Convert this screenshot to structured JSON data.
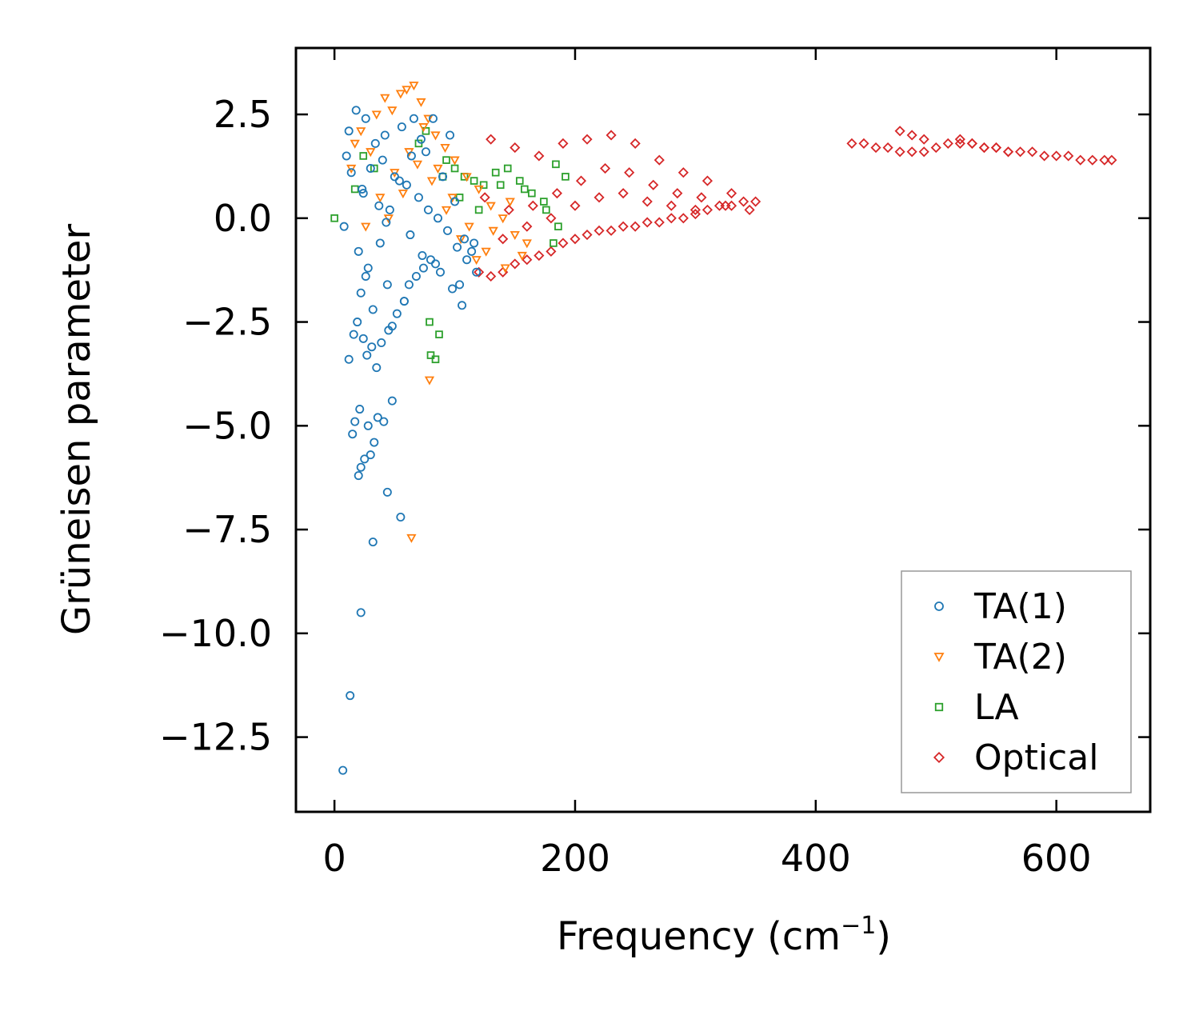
{
  "chart_data": {
    "type": "scatter",
    "title": "",
    "xlabel": "Frequency (cm",
    "xlabel_sup": "−1",
    "xlabel_end": ")",
    "ylabel": "Grüneisen parameter",
    "xlim": [
      -32,
      678
    ],
    "ylim": [
      -14.3,
      4.1
    ],
    "xticks": [
      0,
      200,
      400,
      600
    ],
    "xtick_labels": [
      "0",
      "200",
      "400",
      "600"
    ],
    "yticks": [
      2.5,
      0.0,
      -2.5,
      -5.0,
      -7.5,
      -10.0,
      -12.5
    ],
    "ytick_labels": [
      "2.5",
      "0.0",
      "−2.5",
      "−5.0",
      "−7.5",
      "−10.0",
      "−12.5"
    ],
    "grid": false,
    "legend_position": "lower-right",
    "series": [
      {
        "name": "TA(1)",
        "marker": "circle",
        "color": "#1f77b4",
        "x": [
          7,
          13,
          22,
          32,
          55,
          44,
          20,
          22,
          25,
          30,
          33,
          15,
          17,
          21,
          28,
          36,
          48,
          41,
          12,
          16,
          19,
          24,
          27,
          31,
          35,
          39,
          45,
          52,
          58,
          62,
          68,
          74,
          80,
          12,
          18,
          26,
          34,
          40,
          50,
          60,
          70,
          78,
          86,
          94,
          102,
          110,
          118,
          8,
          24,
          30,
          42,
          56,
          66,
          76,
          90,
          100,
          108,
          22,
          28,
          38,
          46,
          54,
          64,
          72,
          82,
          96,
          114,
          20,
          26,
          32,
          44,
          48,
          58,
          84,
          104,
          116,
          10,
          14,
          23,
          37,
          43,
          63,
          73,
          88,
          98,
          106
        ],
        "y": [
          -13.3,
          -11.5,
          -9.5,
          -7.8,
          -7.2,
          -6.6,
          -6.2,
          -6.0,
          -5.8,
          -5.7,
          -5.4,
          -5.2,
          -4.9,
          -4.6,
          -5.0,
          -4.8,
          -4.4,
          -4.9,
          -3.4,
          -2.8,
          -2.5,
          -2.9,
          -3.3,
          -3.1,
          -3.6,
          -3.0,
          -2.7,
          -2.3,
          -2.0,
          -1.6,
          -1.4,
          -1.2,
          -1.0,
          2.1,
          2.6,
          2.4,
          1.8,
          1.4,
          1.0,
          0.8,
          0.5,
          0.2,
          0.0,
          -0.3,
          -0.7,
          -1.0,
          -1.3,
          -0.2,
          0.6,
          1.2,
          2.0,
          2.2,
          2.4,
          1.6,
          1.0,
          0.4,
          -0.5,
          -1.8,
          -1.2,
          -0.6,
          0.2,
          0.9,
          1.5,
          1.9,
          2.4,
          2.0,
          -0.8,
          -0.8,
          -1.4,
          -2.2,
          -1.6,
          -2.6,
          -2.0,
          -1.1,
          -1.6,
          -0.6,
          1.5,
          1.1,
          0.7,
          0.3,
          -0.1,
          -0.4,
          -0.9,
          -1.3,
          -1.7,
          -2.1
        ]
      },
      {
        "name": "TA(2)",
        "marker": "triangle-down",
        "color": "#ff7f0e",
        "x": [
          64,
          79,
          14,
          17,
          22,
          30,
          35,
          42,
          48,
          55,
          60,
          66,
          72,
          78,
          84,
          92,
          100,
          110,
          120,
          130,
          140,
          150,
          160,
          26,
          38,
          50,
          62,
          74,
          86,
          98,
          112,
          126,
          142,
          156,
          45,
          57,
          69,
          81,
          93,
          105,
          118,
          132,
          146
        ],
        "y": [
          -7.7,
          -3.9,
          1.2,
          1.8,
          2.1,
          1.6,
          2.5,
          2.9,
          2.6,
          3.0,
          3.1,
          3.2,
          2.8,
          2.4,
          2.0,
          1.7,
          1.4,
          1.0,
          0.7,
          0.3,
          0.0,
          -0.4,
          -0.6,
          -0.2,
          0.5,
          1.1,
          1.6,
          2.2,
          1.2,
          0.5,
          -0.2,
          -0.8,
          -1.2,
          -0.9,
          0.0,
          0.6,
          1.3,
          0.9,
          0.2,
          -0.5,
          -1.0,
          -0.3,
          0.4
        ]
      },
      {
        "name": "LA",
        "marker": "square",
        "color": "#2ca02c",
        "x": [
          0,
          17,
          24,
          33,
          80,
          84,
          87,
          79,
          93,
          100,
          108,
          116,
          124,
          134,
          144,
          154,
          164,
          174,
          184,
          192,
          182,
          186,
          70,
          76,
          90,
          104,
          120,
          138,
          158,
          176
        ],
        "y": [
          0.0,
          0.7,
          1.5,
          1.2,
          -3.3,
          -3.4,
          -2.8,
          -2.5,
          1.4,
          1.2,
          1.0,
          0.9,
          0.8,
          1.1,
          1.2,
          0.9,
          0.6,
          0.4,
          1.3,
          1.0,
          -0.6,
          -0.2,
          1.8,
          2.1,
          1.0,
          0.5,
          0.2,
          0.8,
          0.7,
          0.2
        ]
      },
      {
        "name": "Optical",
        "marker": "diamond",
        "color": "#d62728",
        "x": [
          120,
          130,
          140,
          150,
          160,
          170,
          180,
          190,
          200,
          210,
          220,
          230,
          240,
          250,
          260,
          270,
          280,
          290,
          300,
          310,
          320,
          330,
          340,
          350,
          130,
          150,
          170,
          190,
          210,
          230,
          250,
          270,
          290,
          310,
          330,
          125,
          145,
          165,
          185,
          205,
          225,
          245,
          265,
          285,
          305,
          325,
          345,
          140,
          160,
          180,
          200,
          220,
          240,
          260,
          280,
          300,
          430,
          440,
          450,
          460,
          470,
          480,
          490,
          500,
          510,
          520,
          530,
          540,
          550,
          560,
          570,
          580,
          590,
          600,
          610,
          620,
          630,
          640,
          646,
          470,
          480,
          490,
          520,
          530,
          540,
          550,
          560
        ],
        "y": [
          -1.3,
          -1.4,
          -1.3,
          -1.1,
          -1.0,
          -0.9,
          -0.8,
          -0.6,
          -0.5,
          -0.4,
          -0.3,
          -0.3,
          -0.2,
          -0.2,
          -0.1,
          -0.1,
          0.0,
          0.0,
          0.1,
          0.2,
          0.3,
          0.3,
          0.4,
          0.4,
          1.9,
          1.7,
          1.5,
          1.8,
          1.9,
          2.0,
          1.8,
          1.4,
          1.1,
          0.9,
          0.6,
          0.5,
          0.2,
          0.3,
          0.6,
          0.9,
          1.2,
          1.1,
          0.8,
          0.6,
          0.5,
          0.3,
          0.2,
          -0.5,
          -0.2,
          0.0,
          0.3,
          0.5,
          0.6,
          0.4,
          0.3,
          0.2,
          1.8,
          1.8,
          1.7,
          1.7,
          1.6,
          1.6,
          1.6,
          1.7,
          1.8,
          1.8,
          1.8,
          1.7,
          1.7,
          1.6,
          1.6,
          1.6,
          1.5,
          1.5,
          1.5,
          1.4,
          1.4,
          1.4,
          1.4,
          2.1,
          2.0,
          1.9,
          1.9,
          1.8,
          1.7,
          1.7,
          1.6
        ]
      }
    ]
  }
}
